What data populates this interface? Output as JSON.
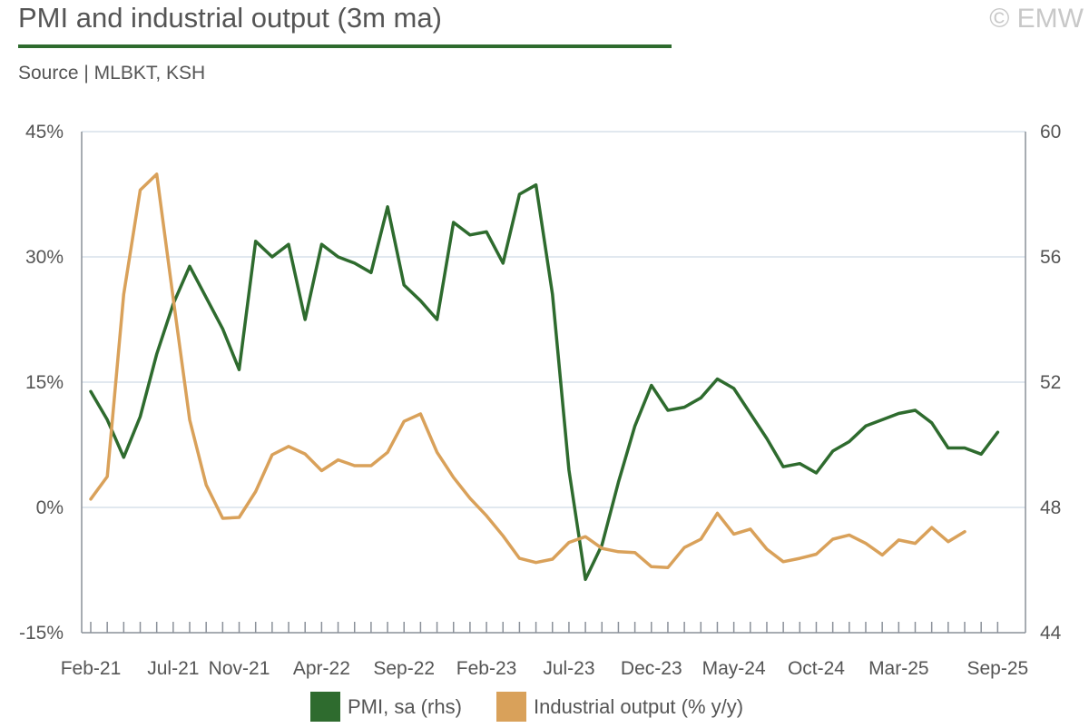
{
  "header": {
    "title": "PMI and industrial output (3m ma)",
    "copyright": "© EMW",
    "source": "Source | MLBKT, KSH"
  },
  "colors": {
    "pmi": "#2e6b2e",
    "industrial": "#d9a15a",
    "grid": "#d7e0ea",
    "axis": "#8a9099"
  },
  "chart_data": {
    "type": "line",
    "x_tick_labels": [
      "Feb-21",
      "Jul-21",
      "Nov-21",
      "Apr-22",
      "Sep-22",
      "Feb-23",
      "Jul-23",
      "Dec-23",
      "May-24",
      "Oct-24",
      "Mar-25",
      "Sep-25"
    ],
    "x_start": "2021-02",
    "x_end": "2025-09",
    "left_axis": {
      "ticks": [
        "45%",
        "30%",
        "15%",
        "0%",
        "-15%"
      ],
      "ylim": [
        -15,
        45
      ]
    },
    "right_axis": {
      "ticks": [
        "60",
        "56",
        "52",
        "48",
        "44"
      ],
      "ylim": [
        44,
        60
      ]
    },
    "series": [
      {
        "name": "PMI, sa (rhs)",
        "axis": "right",
        "start": "2021-02",
        "values": [
          51.7,
          50.8,
          49.6,
          50.9,
          52.9,
          54.5,
          55.7,
          54.7,
          53.7,
          52.4,
          56.5,
          56.0,
          56.4,
          54.0,
          56.4,
          56.0,
          55.8,
          55.5,
          57.6,
          55.1,
          54.6,
          54.0,
          57.1,
          56.7,
          56.8,
          55.8,
          58.0,
          58.3,
          54.8,
          49.2,
          45.7,
          46.8,
          48.8,
          50.6,
          51.9,
          51.1,
          51.2,
          51.5,
          52.1,
          51.8,
          51.0,
          50.2,
          49.3,
          49.4,
          49.1,
          49.8,
          50.1,
          50.6,
          50.8,
          51.0,
          51.1,
          50.7,
          49.9,
          49.9,
          49.7,
          50.4
        ]
      },
      {
        "name": "Industrial output (% y/y)",
        "axis": "left",
        "start": "2021-02",
        "values": [
          1.0,
          3.7,
          25.5,
          38.0,
          39.9,
          25.0,
          10.5,
          2.7,
          -1.3,
          -1.2,
          1.9,
          6.3,
          7.3,
          6.4,
          4.4,
          5.7,
          5.0,
          5.0,
          6.6,
          10.3,
          11.2,
          6.6,
          3.6,
          1.1,
          -1.0,
          -3.4,
          -6.1,
          -6.6,
          -6.2,
          -4.2,
          -3.5,
          -4.9,
          -5.3,
          -5.4,
          -7.1,
          -7.2,
          -4.8,
          -3.8,
          -0.7,
          -3.2,
          -2.6,
          -5.0,
          -6.5,
          -6.1,
          -5.6,
          -3.8,
          -3.3,
          -4.3,
          -5.7,
          -3.9,
          -4.3,
          -2.4,
          -4.1,
          -2.9
        ]
      }
    ]
  },
  "legend": {
    "items": [
      {
        "label": "PMI, sa (rhs)"
      },
      {
        "label": "Industrial output (% y/y)"
      }
    ]
  }
}
